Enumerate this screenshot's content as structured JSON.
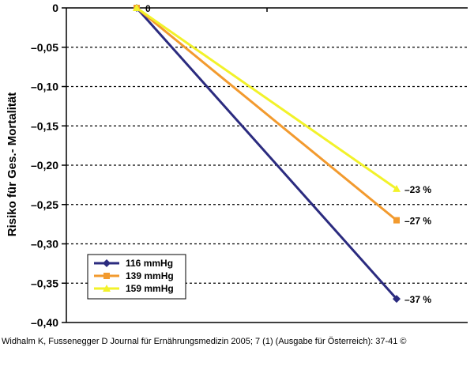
{
  "chart_data": {
    "type": "line",
    "ylabel": "Risiko für Ges.- Mortalität",
    "xlabel": "",
    "ylim": [
      -0.4,
      0
    ],
    "yticks": [
      0,
      -0.05,
      -0.1,
      -0.15,
      -0.2,
      -0.25,
      -0.3,
      -0.35,
      -0.4
    ],
    "ytick_labels": [
      "0",
      "–0,05",
      "–0,10",
      "–0,15",
      "–0,20",
      "–0,25",
      "–0,30",
      "–0,35",
      "–0,40"
    ],
    "grid": "horizontal dashed",
    "legend_placement": "bottom-left",
    "series": [
      {
        "name": "116 mmHg",
        "color": "#2b2b7f",
        "marker": "diamond",
        "values": [
          0,
          -0.37
        ],
        "end_label": "–37 %"
      },
      {
        "name": "139 mmHg",
        "color": "#f29a2e",
        "marker": "square",
        "values": [
          0,
          -0.27
        ],
        "end_label": "–27 %"
      },
      {
        "name": "159 mmHg",
        "color": "#f2f22a",
        "marker": "triangle",
        "values": [
          0,
          -0.23
        ],
        "end_label": "–23 %"
      }
    ],
    "start_label": "0"
  },
  "citation": "Widhalm K, Fussenegger D Journal für Ernährungsmedizin 2005; 7 (1) (Ausgabe für Österreich): 37-41 ©"
}
